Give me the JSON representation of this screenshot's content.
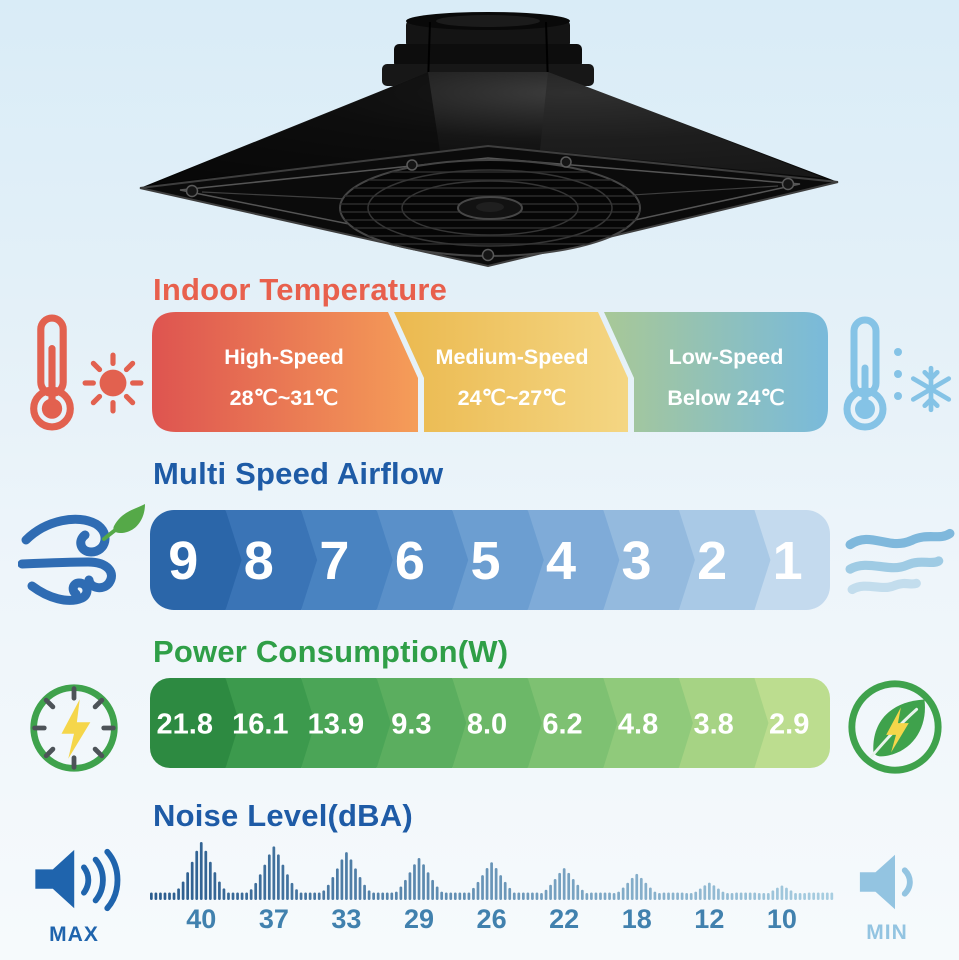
{
  "sections": {
    "temperature": {
      "title": "Indoor Temperature",
      "title_color": "#e8604d",
      "segments": [
        {
          "label": "High-Speed",
          "range": "28℃~31℃",
          "color_from": "#de5450",
          "color_to": "#f59d58"
        },
        {
          "label": "Medium-Speed",
          "range": "24℃~27℃",
          "color_from": "#ebb94f",
          "color_to": "#f4d683"
        },
        {
          "label": "Low-Speed",
          "range": "Below 24℃",
          "color_from": "#a8c897",
          "color_to": "#79badb"
        }
      ]
    },
    "airflow": {
      "title": "Multi Speed Airflow",
      "title_color": "#1e5ba6",
      "speeds": [
        "9",
        "8",
        "7",
        "6",
        "5",
        "4",
        "3",
        "2",
        "1"
      ],
      "colors": [
        "#2b66a9",
        "#3a74b6",
        "#4983c1",
        "#5a90c9",
        "#6c9ed1",
        "#7fabd8",
        "#94bade",
        "#a9c9e6",
        "#c4daee"
      ]
    },
    "power": {
      "title": "Power Consumption(W)",
      "title_color": "#2f9f47",
      "values": [
        "21.8",
        "16.1",
        "13.9",
        "9.3",
        "8.0",
        "6.2",
        "4.8",
        "3.8",
        "2.9"
      ],
      "colors": [
        "#2d8a41",
        "#3c9a4d",
        "#4ba557",
        "#5bae5f",
        "#6cb868",
        "#7ec172",
        "#90ca7b",
        "#a6d384",
        "#bcdd8f"
      ]
    },
    "noise": {
      "title": "Noise Level(dBA)",
      "title_color": "#1e5ba6",
      "levels": [
        "40",
        "37",
        "33",
        "29",
        "26",
        "22",
        "18",
        "12",
        "10"
      ],
      "bar_color_from": "#2a5c8e",
      "bar_color_to": "#a9cfe2",
      "max_label": "MAX",
      "min_label": "MIN"
    }
  },
  "chart_data": [
    {
      "type": "bar",
      "title": "Power Consumption(W)",
      "categories": [
        "9",
        "8",
        "7",
        "6",
        "5",
        "4",
        "3",
        "2",
        "1"
      ],
      "values": [
        21.8,
        16.1,
        13.9,
        9.3,
        8.0,
        6.2,
        4.8,
        3.8,
        2.9
      ],
      "xlabel": "",
      "ylabel": "W",
      "legend": false
    },
    {
      "type": "bar",
      "title": "Noise Level(dBA)",
      "categories": [
        "9",
        "8",
        "7",
        "6",
        "5",
        "4",
        "3",
        "2",
        "1"
      ],
      "values": [
        40,
        37,
        33,
        29,
        26,
        22,
        18,
        12,
        10
      ],
      "xlabel": "",
      "ylabel": "dBA",
      "legend": false
    }
  ]
}
